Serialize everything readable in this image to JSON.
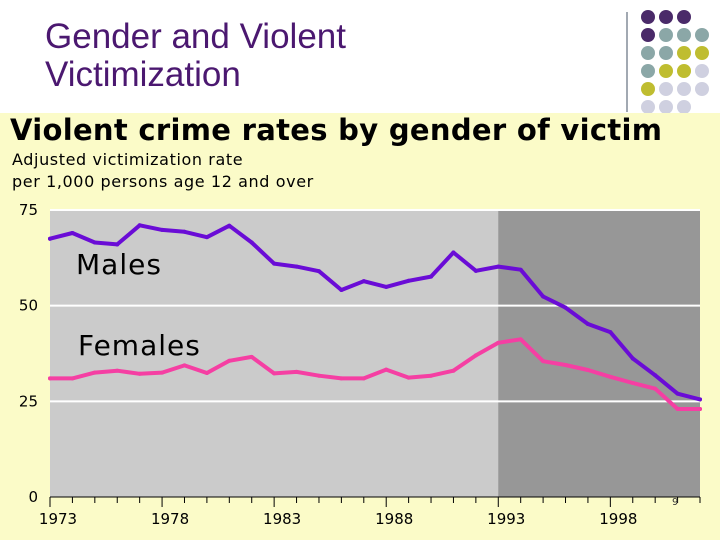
{
  "slide": {
    "title_line1": "Gender and Violent",
    "title_line2": "Victimization",
    "page_number": "9"
  },
  "colors": {
    "title": "#4b1870",
    "dot_purple": "#4a2a69",
    "dot_teal": "#8ba7a7",
    "dot_olive": "#bfbd30",
    "dot_lilac": "#cfd0e0",
    "panel_bg": "#fbfbc8",
    "plot_light": "#cbcbcb",
    "plot_dark": "#979797",
    "males": "#6a0cd6",
    "females": "#f53fa3"
  },
  "chart_data": {
    "type": "line",
    "title": "Violent crime rates by gender of victim",
    "subtitle_line1": "Adjusted victimization rate",
    "subtitle_line2": "per 1,000 persons age 12 and over",
    "x": [
      1973,
      1974,
      1975,
      1976,
      1977,
      1978,
      1979,
      1980,
      1981,
      1982,
      1983,
      1984,
      1985,
      1986,
      1987,
      1988,
      1989,
      1990,
      1991,
      1992,
      1993,
      1994,
      1995,
      1996,
      1997,
      1998,
      1999,
      2000,
      2001,
      2002
    ],
    "series": [
      {
        "name": "Males",
        "label": "Males",
        "values": [
          67.5,
          69,
          66.5,
          66,
          71,
          69.8,
          69.3,
          67.9,
          70.9,
          66.5,
          61,
          60.2,
          59,
          54.1,
          56.4,
          54.9,
          56.5,
          57.6,
          63.9,
          59.1,
          60.2,
          59.4,
          52.4,
          49.5,
          45.2,
          43.1,
          36.2,
          31.8,
          27,
          25.5
        ]
      },
      {
        "name": "Females",
        "label": "Females",
        "values": [
          31,
          31,
          32.5,
          33,
          32.2,
          32.5,
          34.4,
          32.4,
          35.6,
          36.6,
          32.3,
          32.7,
          31.7,
          31,
          31,
          33.3,
          31.2,
          31.7,
          33,
          37,
          40.3,
          41.2,
          35.5,
          34.5,
          33.2,
          31.4,
          29.8,
          28.3,
          23,
          23
        ]
      }
    ],
    "ylim": [
      0,
      75
    ],
    "yticks": [
      0,
      25,
      50,
      75
    ],
    "ytick_labels": [
      "0",
      "25",
      "50",
      "75"
    ],
    "xtick_labels": [
      "1973",
      "1978",
      "1983",
      "1988",
      "1993",
      "1998"
    ],
    "xtick_years": [
      1973,
      1978,
      1983,
      1988,
      1993,
      1998
    ],
    "shaded_region": [
      1993,
      2002
    ],
    "grid": true
  }
}
